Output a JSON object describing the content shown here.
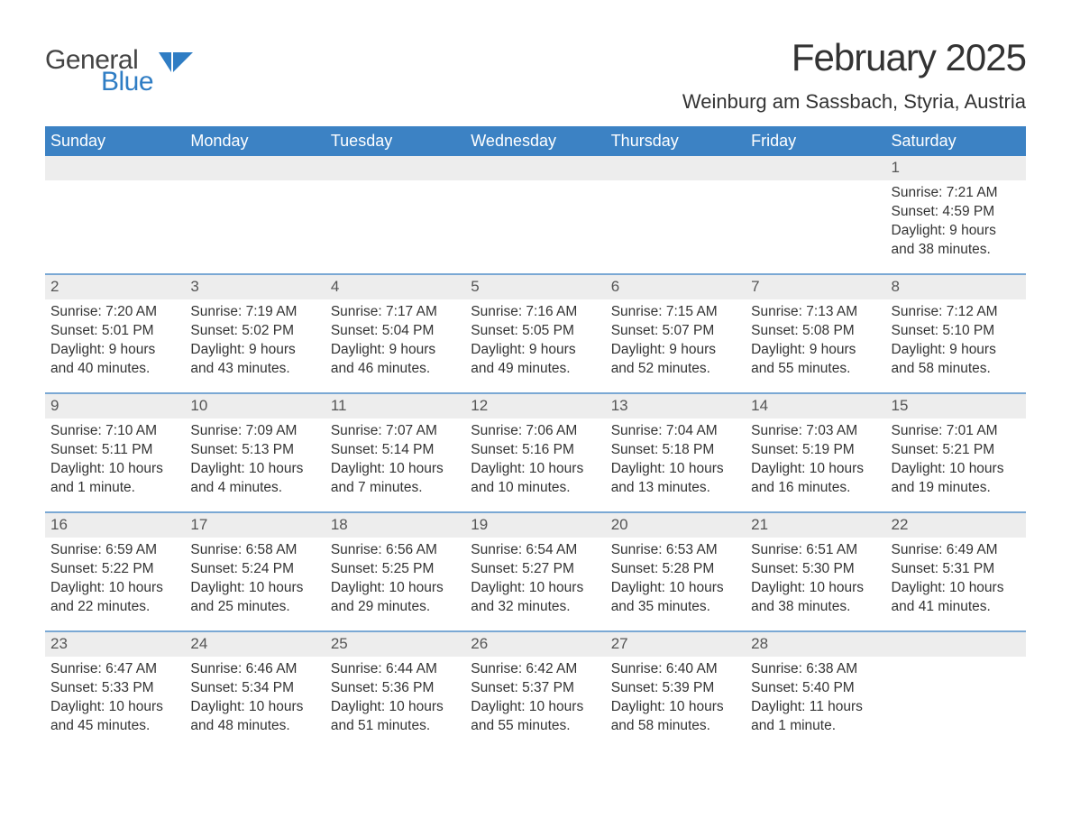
{
  "brand": {
    "main": "General",
    "sub": "Blue"
  },
  "colors": {
    "header_bg": "#3c82c4",
    "header_text": "#ffffff",
    "week_border": "#7aa8d4",
    "daynum_bg": "#ededed",
    "text": "#333333",
    "logo_accent": "#2f7dc4",
    "background": "#ffffff"
  },
  "typography": {
    "title_fontsize": 42,
    "location_fontsize": 22,
    "dayheader_fontsize": 18,
    "cell_fontsize": 15.5,
    "font_family": "Segoe UI, Arial, sans-serif"
  },
  "title": "February 2025",
  "location": "Weinburg am Sassbach, Styria, Austria",
  "day_labels": [
    "Sunday",
    "Monday",
    "Tuesday",
    "Wednesday",
    "Thursday",
    "Friday",
    "Saturday"
  ],
  "weeks": [
    [
      null,
      null,
      null,
      null,
      null,
      null,
      {
        "d": "1",
        "sunrise": "Sunrise: 7:21 AM",
        "sunset": "Sunset: 4:59 PM",
        "daylight": "Daylight: 9 hours and 38 minutes."
      }
    ],
    [
      {
        "d": "2",
        "sunrise": "Sunrise: 7:20 AM",
        "sunset": "Sunset: 5:01 PM",
        "daylight": "Daylight: 9 hours and 40 minutes."
      },
      {
        "d": "3",
        "sunrise": "Sunrise: 7:19 AM",
        "sunset": "Sunset: 5:02 PM",
        "daylight": "Daylight: 9 hours and 43 minutes."
      },
      {
        "d": "4",
        "sunrise": "Sunrise: 7:17 AM",
        "sunset": "Sunset: 5:04 PM",
        "daylight": "Daylight: 9 hours and 46 minutes."
      },
      {
        "d": "5",
        "sunrise": "Sunrise: 7:16 AM",
        "sunset": "Sunset: 5:05 PM",
        "daylight": "Daylight: 9 hours and 49 minutes."
      },
      {
        "d": "6",
        "sunrise": "Sunrise: 7:15 AM",
        "sunset": "Sunset: 5:07 PM",
        "daylight": "Daylight: 9 hours and 52 minutes."
      },
      {
        "d": "7",
        "sunrise": "Sunrise: 7:13 AM",
        "sunset": "Sunset: 5:08 PM",
        "daylight": "Daylight: 9 hours and 55 minutes."
      },
      {
        "d": "8",
        "sunrise": "Sunrise: 7:12 AM",
        "sunset": "Sunset: 5:10 PM",
        "daylight": "Daylight: 9 hours and 58 minutes."
      }
    ],
    [
      {
        "d": "9",
        "sunrise": "Sunrise: 7:10 AM",
        "sunset": "Sunset: 5:11 PM",
        "daylight": "Daylight: 10 hours and 1 minute."
      },
      {
        "d": "10",
        "sunrise": "Sunrise: 7:09 AM",
        "sunset": "Sunset: 5:13 PM",
        "daylight": "Daylight: 10 hours and 4 minutes."
      },
      {
        "d": "11",
        "sunrise": "Sunrise: 7:07 AM",
        "sunset": "Sunset: 5:14 PM",
        "daylight": "Daylight: 10 hours and 7 minutes."
      },
      {
        "d": "12",
        "sunrise": "Sunrise: 7:06 AM",
        "sunset": "Sunset: 5:16 PM",
        "daylight": "Daylight: 10 hours and 10 minutes."
      },
      {
        "d": "13",
        "sunrise": "Sunrise: 7:04 AM",
        "sunset": "Sunset: 5:18 PM",
        "daylight": "Daylight: 10 hours and 13 minutes."
      },
      {
        "d": "14",
        "sunrise": "Sunrise: 7:03 AM",
        "sunset": "Sunset: 5:19 PM",
        "daylight": "Daylight: 10 hours and 16 minutes."
      },
      {
        "d": "15",
        "sunrise": "Sunrise: 7:01 AM",
        "sunset": "Sunset: 5:21 PM",
        "daylight": "Daylight: 10 hours and 19 minutes."
      }
    ],
    [
      {
        "d": "16",
        "sunrise": "Sunrise: 6:59 AM",
        "sunset": "Sunset: 5:22 PM",
        "daylight": "Daylight: 10 hours and 22 minutes."
      },
      {
        "d": "17",
        "sunrise": "Sunrise: 6:58 AM",
        "sunset": "Sunset: 5:24 PM",
        "daylight": "Daylight: 10 hours and 25 minutes."
      },
      {
        "d": "18",
        "sunrise": "Sunrise: 6:56 AM",
        "sunset": "Sunset: 5:25 PM",
        "daylight": "Daylight: 10 hours and 29 minutes."
      },
      {
        "d": "19",
        "sunrise": "Sunrise: 6:54 AM",
        "sunset": "Sunset: 5:27 PM",
        "daylight": "Daylight: 10 hours and 32 minutes."
      },
      {
        "d": "20",
        "sunrise": "Sunrise: 6:53 AM",
        "sunset": "Sunset: 5:28 PM",
        "daylight": "Daylight: 10 hours and 35 minutes."
      },
      {
        "d": "21",
        "sunrise": "Sunrise: 6:51 AM",
        "sunset": "Sunset: 5:30 PM",
        "daylight": "Daylight: 10 hours and 38 minutes."
      },
      {
        "d": "22",
        "sunrise": "Sunrise: 6:49 AM",
        "sunset": "Sunset: 5:31 PM",
        "daylight": "Daylight: 10 hours and 41 minutes."
      }
    ],
    [
      {
        "d": "23",
        "sunrise": "Sunrise: 6:47 AM",
        "sunset": "Sunset: 5:33 PM",
        "daylight": "Daylight: 10 hours and 45 minutes."
      },
      {
        "d": "24",
        "sunrise": "Sunrise: 6:46 AM",
        "sunset": "Sunset: 5:34 PM",
        "daylight": "Daylight: 10 hours and 48 minutes."
      },
      {
        "d": "25",
        "sunrise": "Sunrise: 6:44 AM",
        "sunset": "Sunset: 5:36 PM",
        "daylight": "Daylight: 10 hours and 51 minutes."
      },
      {
        "d": "26",
        "sunrise": "Sunrise: 6:42 AM",
        "sunset": "Sunset: 5:37 PM",
        "daylight": "Daylight: 10 hours and 55 minutes."
      },
      {
        "d": "27",
        "sunrise": "Sunrise: 6:40 AM",
        "sunset": "Sunset: 5:39 PM",
        "daylight": "Daylight: 10 hours and 58 minutes."
      },
      {
        "d": "28",
        "sunrise": "Sunrise: 6:38 AM",
        "sunset": "Sunset: 5:40 PM",
        "daylight": "Daylight: 11 hours and 1 minute."
      },
      null
    ]
  ]
}
